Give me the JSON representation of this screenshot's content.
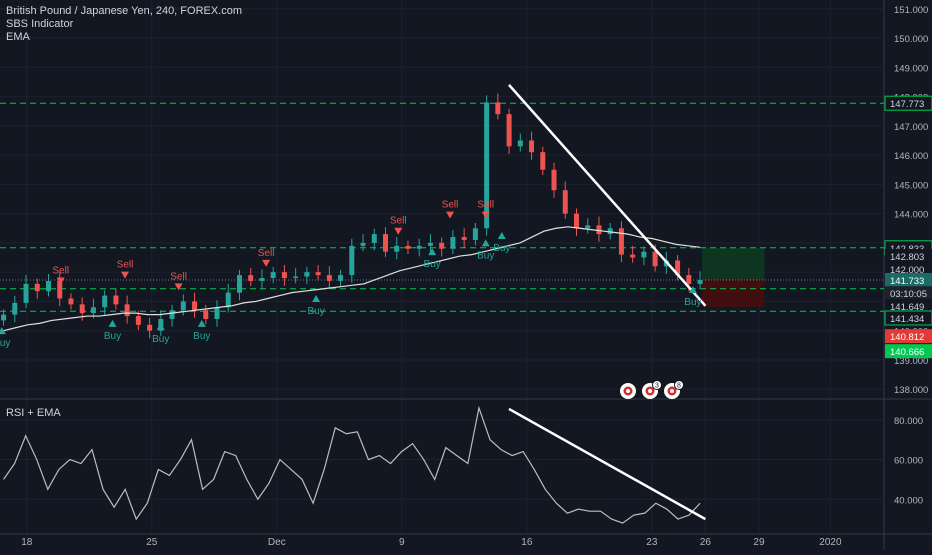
{
  "header": {
    "title": "British Pound / Japanese Yen, 240, FOREX.com",
    "indicator1": "SBS Indicator",
    "indicator2": "EMA"
  },
  "rsi_pane": {
    "title": "RSI + EMA"
  },
  "colors": {
    "background": "#131722",
    "up_candle": "#26a69a",
    "down_candle": "#ef5350",
    "ema_line": "#e0e0e0",
    "trendline": "#ffffff",
    "level_line": "#00c853",
    "grid": "#1e2230",
    "target_zone": "#0d3b1e",
    "stop_zone": "#4a0d0d",
    "buy_label": "#26a69a",
    "sell_label": "#ef5350",
    "price_badge_green": "#00c853",
    "price_badge_red": "#e53935"
  },
  "icons": [
    "record-icon",
    "record-icon",
    "record-icon"
  ],
  "icon_badges": [
    "",
    "3",
    "8"
  ],
  "chart_data": [
    {
      "type": "candlestick",
      "symbol": "GBPJPY",
      "timeframe": "240",
      "y_ticks": [
        "138.000",
        "139.000",
        "140.000",
        "141.000",
        "142.000",
        "143.000",
        "144.000",
        "145.000",
        "146.000",
        "147.000",
        "148.000",
        "149.000",
        "150.000",
        "151.000"
      ],
      "ylim": [
        137.7,
        151.3
      ],
      "x_ticks": [
        "18",
        "25",
        "Dec",
        "9",
        "16",
        "23",
        "26",
        "29",
        "2020"
      ],
      "x_tick_positions": [
        18,
        25,
        32,
        39,
        46,
        53,
        56,
        59,
        63
      ],
      "xlim": [
        16.5,
        66
      ],
      "price_close": [
        140.55,
        140.95,
        141.6,
        141.35,
        141.7,
        141.1,
        140.9,
        140.6,
        140.8,
        141.2,
        140.9,
        140.5,
        140.2,
        140.0,
        140.4,
        140.7,
        141.0,
        140.7,
        140.4,
        140.8,
        141.3,
        141.9,
        141.7,
        141.8,
        142.0,
        141.8,
        141.85,
        142.0,
        141.9,
        141.7,
        141.9,
        142.9,
        143.0,
        143.3,
        142.7,
        142.9,
        142.8,
        142.9,
        143.0,
        142.8,
        143.2,
        143.1,
        143.5,
        147.8,
        147.4,
        146.3,
        146.5,
        146.1,
        145.5,
        144.8,
        144.0,
        143.5,
        143.6,
        143.3,
        143.5,
        142.6,
        142.5,
        142.7,
        142.2,
        142.4,
        141.9,
        141.6,
        141.73
      ],
      "series": [
        {
          "name": "EMA",
          "values": [
            140.0,
            140.1,
            140.2,
            140.25,
            140.35,
            140.4,
            140.45,
            140.5,
            140.5,
            140.55,
            140.6,
            140.6,
            140.55,
            140.55,
            140.6,
            140.65,
            140.7,
            140.75,
            140.8,
            140.85,
            140.95,
            141.0,
            141.1,
            141.2,
            141.3,
            141.35,
            141.4,
            141.45,
            141.5,
            141.55,
            141.6,
            141.75,
            141.9,
            142.05,
            142.15,
            142.25,
            142.35,
            142.45,
            142.55,
            142.6,
            142.7,
            142.8,
            142.9,
            143.0,
            143.2,
            143.4,
            143.5,
            143.55,
            143.5,
            143.45,
            143.4,
            143.35,
            143.3,
            143.2,
            143.15,
            143.05,
            142.95,
            142.9,
            142.85
          ]
        }
      ],
      "horizontal_levels": [
        147.773,
        142.833,
        141.434,
        140.666
      ],
      "trendline": {
        "start": [
          45.0,
          148.4
        ],
        "end": [
          56.0,
          140.85
        ]
      },
      "positions": {
        "entry": 141.733,
        "target": 142.833,
        "stop": 140.812
      },
      "price_labels": [
        {
          "value": "147.773",
          "price": 147.773,
          "style": "green-outline"
        },
        {
          "value": "142.833",
          "price": 142.833,
          "style": "green-outline"
        },
        {
          "value": "142.803",
          "price": 142.55,
          "style": "plain"
        },
        {
          "value": "142.000",
          "price": 142.1,
          "style": "plain"
        },
        {
          "value": "141.733",
          "price": 141.733,
          "style": "teal"
        },
        {
          "value": "03:10:05",
          "price": 141.28,
          "style": "dark"
        },
        {
          "value": "141.649",
          "price": 140.85,
          "style": "plain"
        },
        {
          "value": "141.434",
          "price": 140.434,
          "style": "green-outline"
        },
        {
          "value": "140.812",
          "price": 139.812,
          "style": "red"
        },
        {
          "value": "140.666",
          "price": 139.3,
          "style": "green"
        }
      ],
      "signals": [
        {
          "text": "Buy",
          "x": 16.6,
          "price": 139.95,
          "dir": "buy"
        },
        {
          "text": "Sell",
          "x": 19.9,
          "price": 141.75,
          "dir": "sell"
        },
        {
          "text": "Buy",
          "x": 22.8,
          "price": 140.2,
          "dir": "buy"
        },
        {
          "text": "Sell",
          "x": 23.5,
          "price": 141.95,
          "dir": "sell"
        },
        {
          "text": "Buy",
          "x": 25.5,
          "price": 140.1,
          "dir": "buy"
        },
        {
          "text": "Sell",
          "x": 26.5,
          "price": 141.55,
          "dir": "sell"
        },
        {
          "text": "Buy",
          "x": 27.8,
          "price": 140.2,
          "dir": "buy"
        },
        {
          "text": "Sell",
          "x": 31.4,
          "price": 142.35,
          "dir": "sell"
        },
        {
          "text": "Buy",
          "x": 34.2,
          "price": 141.05,
          "dir": "buy"
        },
        {
          "text": "Sell",
          "x": 38.8,
          "price": 143.45,
          "dir": "sell"
        },
        {
          "text": "Buy",
          "x": 40.7,
          "price": 142.65,
          "dir": "buy"
        },
        {
          "text": "Sell",
          "x": 41.7,
          "price": 144.0,
          "dir": "sell"
        },
        {
          "text": "Sell",
          "x": 43.7,
          "price": 144.0,
          "dir": "sell"
        },
        {
          "text": "Buy",
          "x": 43.7,
          "price": 142.95,
          "dir": "buy"
        },
        {
          "text": "Buy",
          "x": 44.6,
          "price": 143.2,
          "dir": "buy"
        },
        {
          "text": "Buy",
          "x": 55.3,
          "price": 141.35,
          "dir": "buy"
        }
      ]
    },
    {
      "type": "line",
      "title": "RSI + EMA",
      "y_ticks": [
        "40.000",
        "60.000",
        "80.000"
      ],
      "ylim": [
        23,
        90
      ],
      "xlim": [
        16.5,
        66
      ],
      "series": [
        {
          "name": "RSI",
          "values": [
            50,
            58,
            72,
            60,
            45,
            55,
            60,
            58,
            65,
            45,
            36,
            45,
            30,
            38,
            55,
            52,
            60,
            70,
            45,
            50,
            64,
            62,
            50,
            40,
            48,
            60,
            55,
            50,
            38,
            55,
            76,
            73,
            74,
            60,
            62,
            58,
            64,
            68,
            60,
            50,
            66,
            62,
            58,
            86,
            70,
            65,
            62,
            64,
            55,
            45,
            38,
            33,
            35,
            34,
            34,
            30,
            28,
            32,
            33,
            38,
            35,
            30,
            32,
            38
          ]
        }
      ],
      "trendline": {
        "start": [
          45.0,
          85.5
        ],
        "end": [
          56.0,
          30.0
        ]
      }
    }
  ]
}
